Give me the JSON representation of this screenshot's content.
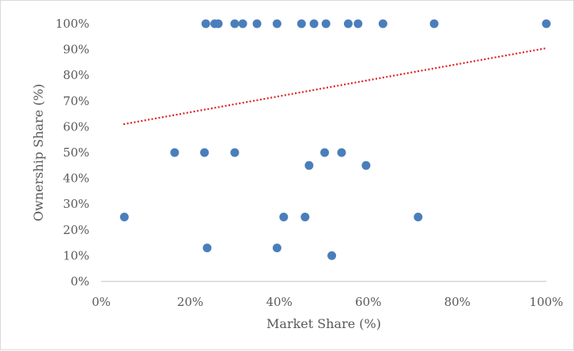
{
  "chart_data": {
    "type": "scatter",
    "xlabel": "Market Share (%)",
    "ylabel": "Ownership Share (%)",
    "xlim": [
      0,
      100
    ],
    "ylim": [
      0,
      100
    ],
    "x_ticks": [
      "0%",
      "20%",
      "40%",
      "60%",
      "80%",
      "100%"
    ],
    "y_ticks": [
      "0%",
      "10%",
      "20%",
      "30%",
      "40%",
      "50%",
      "60%",
      "70%",
      "80%",
      "90%",
      "100%"
    ],
    "grid": false,
    "legend": "none",
    "marker_color": "#4a7ebb",
    "trendline": {
      "type": "linear",
      "color": "#e02020",
      "style": "dotted",
      "x": [
        5,
        100
      ],
      "y": [
        61,
        90.5
      ]
    },
    "points": [
      {
        "x": 23.5,
        "y": 100
      },
      {
        "x": 25.5,
        "y": 100
      },
      {
        "x": 26.3,
        "y": 100
      },
      {
        "x": 30,
        "y": 100
      },
      {
        "x": 31.8,
        "y": 100
      },
      {
        "x": 35,
        "y": 100
      },
      {
        "x": 39.5,
        "y": 100
      },
      {
        "x": 45,
        "y": 100
      },
      {
        "x": 47.8,
        "y": 100
      },
      {
        "x": 50.5,
        "y": 100
      },
      {
        "x": 55.5,
        "y": 100
      },
      {
        "x": 57.7,
        "y": 100
      },
      {
        "x": 63.3,
        "y": 100
      },
      {
        "x": 74.8,
        "y": 100
      },
      {
        "x": 100,
        "y": 100
      },
      {
        "x": 16.5,
        "y": 50
      },
      {
        "x": 23.2,
        "y": 50
      },
      {
        "x": 30,
        "y": 50
      },
      {
        "x": 50.2,
        "y": 50
      },
      {
        "x": 54,
        "y": 50
      },
      {
        "x": 46.7,
        "y": 45
      },
      {
        "x": 59.5,
        "y": 45
      },
      {
        "x": 5.2,
        "y": 25
      },
      {
        "x": 41,
        "y": 25
      },
      {
        "x": 45.8,
        "y": 25
      },
      {
        "x": 71.2,
        "y": 25
      },
      {
        "x": 23.8,
        "y": 13
      },
      {
        "x": 39.5,
        "y": 13
      },
      {
        "x": 51.8,
        "y": 10
      }
    ]
  }
}
